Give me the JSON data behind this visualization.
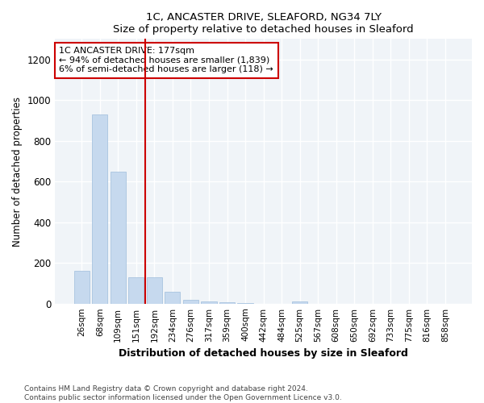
{
  "title1": "1C, ANCASTER DRIVE, SLEAFORD, NG34 7LY",
  "title2": "Size of property relative to detached houses in Sleaford",
  "xlabel": "Distribution of detached houses by size in Sleaford",
  "ylabel": "Number of detached properties",
  "categories": [
    "26sqm",
    "68sqm",
    "109sqm",
    "151sqm",
    "192sqm",
    "234sqm",
    "276sqm",
    "317sqm",
    "359sqm",
    "400sqm",
    "442sqm",
    "484sqm",
    "525sqm",
    "567sqm",
    "608sqm",
    "650sqm",
    "692sqm",
    "733sqm",
    "775sqm",
    "816sqm",
    "858sqm"
  ],
  "values": [
    160,
    930,
    650,
    130,
    130,
    60,
    20,
    10,
    5,
    2,
    0,
    0,
    10,
    0,
    0,
    0,
    0,
    0,
    0,
    0,
    0
  ],
  "bar_color": "#c6d9ee",
  "bar_edge_color": "#a8c4e0",
  "vline_color": "#cc0000",
  "annotation_text": "1C ANCASTER DRIVE: 177sqm\n← 94% of detached houses are smaller (1,839)\n6% of semi-detached houses are larger (118) →",
  "annotation_box_color": "white",
  "annotation_box_edge_color": "#cc0000",
  "ylim": [
    0,
    1300
  ],
  "yticks": [
    0,
    200,
    400,
    600,
    800,
    1000,
    1200
  ],
  "footer1": "Contains HM Land Registry data © Crown copyright and database right 2024.",
  "footer2": "Contains public sector information licensed under the Open Government Licence v3.0.",
  "bg_color": "#ffffff",
  "plot_bg_color": "#f0f4f8"
}
